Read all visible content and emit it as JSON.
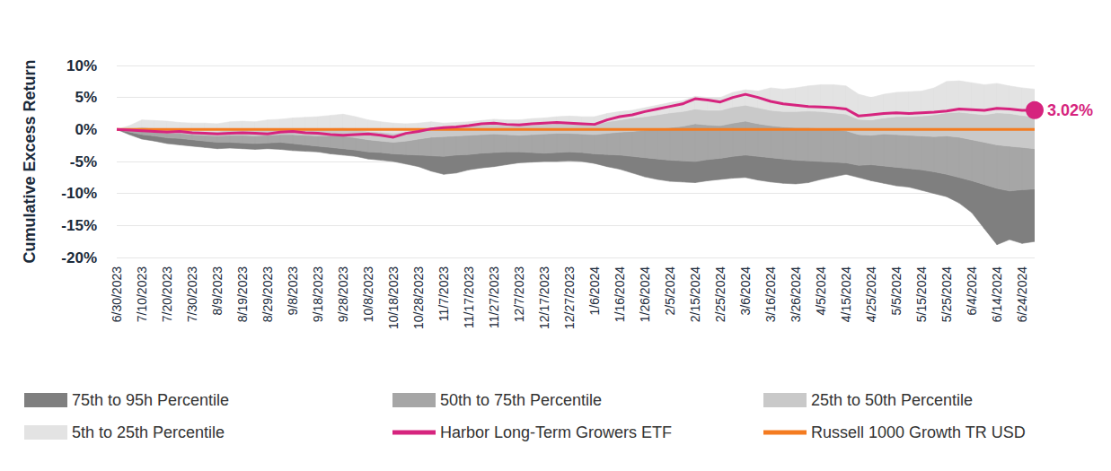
{
  "chart_data": {
    "type": "line",
    "y_label": "Cumulative Excess Return",
    "categories": [
      "6/30/2023",
      null,
      "7/10/2023",
      null,
      "7/20/2023",
      null,
      "7/30/2023",
      null,
      "8/9/2023",
      null,
      "8/19/2023",
      null,
      "8/29/2023",
      null,
      "9/8/2023",
      null,
      "9/18/2023",
      null,
      "9/28/2023",
      null,
      "10/8/2023",
      null,
      "10/18/2023",
      null,
      "10/28/2023",
      null,
      "11/7/2023",
      null,
      "11/17/2023",
      null,
      "11/27/2023",
      null,
      "12/7/2023",
      null,
      "12/17/2023",
      null,
      "12/27/2023",
      null,
      "1/6/2024",
      null,
      "1/16/2024",
      null,
      "1/26/2024",
      null,
      "2/5/2024",
      null,
      "2/15/2024",
      null,
      "2/25/2024",
      null,
      "3/6/2024",
      null,
      "3/16/2024",
      null,
      "3/26/2024",
      null,
      "4/5/2024",
      null,
      "4/15/2024",
      null,
      "4/25/2024",
      null,
      "5/5/2024",
      null,
      "5/15/2024",
      null,
      "5/25/2024",
      null,
      "6/4/2024",
      null,
      "6/14/2024",
      null,
      "6/24/2024",
      null
    ],
    "ylim": [
      -20,
      10
    ],
    "yticks": [
      {
        "value": -20,
        "label": "-20%"
      },
      {
        "value": -15,
        "label": "-15%"
      },
      {
        "value": -10,
        "label": "-10%"
      },
      {
        "value": -5,
        "label": "-5%"
      },
      {
        "value": 0,
        "label": "0%"
      },
      {
        "value": 5,
        "label": "5%"
      },
      {
        "value": 10,
        "label": "10%"
      }
    ],
    "grid": true,
    "legend": "bottom",
    "bands": [
      {
        "name": "75th to 95h Percentile",
        "color": "#7f7f7f",
        "type": "area",
        "low": [
          0,
          -0.8,
          -1.5,
          -1.8,
          -2.2,
          -2.4,
          -2.6,
          -2.8,
          -3.0,
          -2.9,
          -3.0,
          -3.1,
          -3.0,
          -3.1,
          -3.3,
          -3.4,
          -3.5,
          -3.8,
          -4.0,
          -4.2,
          -4.6,
          -4.8,
          -5.0,
          -5.4,
          -5.8,
          -6.5,
          -7.0,
          -6.8,
          -6.3,
          -6.0,
          -5.8,
          -5.5,
          -5.2,
          -5.1,
          -5.0,
          -5.0,
          -4.9,
          -5.0,
          -5.3,
          -5.8,
          -6.2,
          -6.8,
          -7.4,
          -7.8,
          -8.1,
          -8.2,
          -8.3,
          -8.0,
          -7.8,
          -7.6,
          -7.5,
          -7.9,
          -8.2,
          -8.4,
          -8.5,
          -8.3,
          -7.8,
          -7.4,
          -7.0,
          -7.5,
          -8.0,
          -8.4,
          -8.8,
          -9.0,
          -9.5,
          -10.0,
          -10.5,
          -11.5,
          -13.0,
          -15.5,
          -18.0,
          -17.2,
          -17.8,
          -17.5
        ],
        "high": [
          0,
          -0.4,
          -0.8,
          -1.0,
          -1.3,
          -1.4,
          -1.6,
          -1.8,
          -2.0,
          -2.0,
          -2.1,
          -2.2,
          -2.1,
          -2.0,
          -2.2,
          -2.4,
          -2.6,
          -2.8,
          -3.0,
          -3.2,
          -3.5,
          -3.6,
          -3.8,
          -3.9,
          -4.0,
          -4.1,
          -4.2,
          -4.0,
          -3.9,
          -3.7,
          -3.6,
          -3.5,
          -3.5,
          -3.6,
          -3.7,
          -3.6,
          -3.5,
          -3.6,
          -3.8,
          -3.9,
          -4.0,
          -4.2,
          -4.4,
          -4.6,
          -4.8,
          -4.9,
          -5.0,
          -4.7,
          -4.5,
          -4.2,
          -4.0,
          -4.2,
          -4.4,
          -4.6,
          -4.8,
          -4.9,
          -5.0,
          -5.1,
          -5.2,
          -5.6,
          -5.5,
          -5.7,
          -5.9,
          -6.1,
          -6.3,
          -6.6,
          -7.0,
          -7.5,
          -8.0,
          -8.6,
          -9.2,
          -9.6,
          -9.4,
          -9.3
        ]
      },
      {
        "name": "50th to 75th Percentile",
        "color": "#a6a6a6",
        "type": "area",
        "low": [
          0,
          -0.4,
          -0.8,
          -1.0,
          -1.3,
          -1.4,
          -1.6,
          -1.8,
          -2.0,
          -2.0,
          -2.1,
          -2.2,
          -2.1,
          -2.0,
          -2.2,
          -2.4,
          -2.6,
          -2.8,
          -3.0,
          -3.2,
          -3.5,
          -3.6,
          -3.8,
          -3.9,
          -4.0,
          -4.1,
          -4.2,
          -4.0,
          -3.9,
          -3.7,
          -3.6,
          -3.5,
          -3.5,
          -3.6,
          -3.7,
          -3.6,
          -3.5,
          -3.6,
          -3.8,
          -3.9,
          -4.0,
          -4.2,
          -4.4,
          -4.6,
          -4.8,
          -4.9,
          -5.0,
          -4.7,
          -4.5,
          -4.2,
          -4.0,
          -4.2,
          -4.4,
          -4.6,
          -4.8,
          -4.9,
          -5.0,
          -5.1,
          -5.2,
          -5.6,
          -5.5,
          -5.7,
          -5.9,
          -6.1,
          -6.3,
          -6.6,
          -7.0,
          -7.5,
          -8.0,
          -8.6,
          -9.2,
          -9.6,
          -9.4,
          -9.3
        ],
        "high": [
          0,
          -0.2,
          -0.3,
          -0.4,
          -0.6,
          -0.6,
          -0.8,
          -0.9,
          -1.0,
          -0.9,
          -0.9,
          -1.0,
          -0.9,
          -0.8,
          -0.8,
          -0.9,
          -1.0,
          -1.0,
          -1.0,
          -1.3,
          -1.6,
          -1.8,
          -2.0,
          -1.8,
          -1.5,
          -1.2,
          -1.1,
          -1.0,
          -0.9,
          -0.8,
          -0.7,
          -0.8,
          -0.9,
          -0.8,
          -0.7,
          -0.6,
          -0.6,
          -0.7,
          -0.8,
          -0.6,
          -0.4,
          -0.3,
          -0.1,
          0.1,
          0.3,
          0.5,
          0.9,
          0.7,
          0.6,
          1.0,
          1.3,
          0.9,
          0.6,
          0.4,
          0.3,
          0.3,
          0.2,
          0.0,
          -0.2,
          -0.8,
          -0.9,
          -0.7,
          -0.8,
          -0.9,
          -1.0,
          -1.1,
          -1.0,
          -1.2,
          -1.6,
          -2.0,
          -2.4,
          -2.6,
          -2.8,
          -3.0
        ]
      },
      {
        "name": "25th to 50th Percentile",
        "color": "#c9c9c9",
        "type": "area",
        "low": [
          0,
          -0.2,
          -0.3,
          -0.4,
          -0.6,
          -0.6,
          -0.8,
          -0.9,
          -1.0,
          -0.9,
          -0.9,
          -1.0,
          -0.9,
          -0.8,
          -0.8,
          -0.9,
          -1.0,
          -1.0,
          -1.0,
          -1.3,
          -1.6,
          -1.8,
          -2.0,
          -1.8,
          -1.5,
          -1.2,
          -1.1,
          -1.0,
          -0.9,
          -0.8,
          -0.7,
          -0.8,
          -0.9,
          -0.8,
          -0.7,
          -0.6,
          -0.6,
          -0.7,
          -0.8,
          -0.6,
          -0.4,
          -0.3,
          -0.1,
          0.1,
          0.3,
          0.5,
          0.9,
          0.7,
          0.6,
          1.0,
          1.3,
          0.9,
          0.6,
          0.4,
          0.3,
          0.3,
          0.2,
          0.0,
          -0.2,
          -0.8,
          -0.9,
          -0.7,
          -0.8,
          -0.9,
          -1.0,
          -1.1,
          -1.0,
          -1.2,
          -1.6,
          -2.0,
          -2.4,
          -2.6,
          -2.8,
          -3.0
        ],
        "high": [
          0,
          0.1,
          0.4,
          0.2,
          0,
          -0.1,
          -0.2,
          -0.3,
          -0.3,
          -0.1,
          0,
          -0.1,
          0,
          0.1,
          0.2,
          0.1,
          0,
          0.2,
          0.3,
          0,
          -0.3,
          -0.4,
          -0.6,
          -0.4,
          -0.2,
          0.3,
          0.4,
          0.5,
          0.6,
          0.7,
          0.8,
          0.6,
          0.6,
          0.7,
          0.8,
          0.9,
          0.9,
          0.8,
          0.8,
          1.2,
          1.5,
          1.8,
          2.0,
          2.3,
          2.6,
          2.8,
          3.2,
          3.0,
          3.0,
          3.5,
          3.8,
          3.4,
          3.0,
          2.8,
          2.8,
          2.9,
          2.8,
          2.6,
          2.4,
          1.6,
          1.5,
          1.8,
          2.0,
          2.0,
          2.1,
          2.3,
          2.6,
          2.7,
          2.5,
          2.3,
          2.6,
          2.5,
          2.2,
          2.0
        ]
      },
      {
        "name": "5th to 25th Percentile",
        "color": "#e3e3e3",
        "type": "area",
        "low": [
          0,
          0.1,
          0.4,
          0.2,
          0,
          -0.1,
          -0.2,
          -0.3,
          -0.3,
          -0.1,
          0,
          -0.1,
          0,
          0.1,
          0.2,
          0.1,
          0,
          0.2,
          0.3,
          0,
          -0.3,
          -0.4,
          -0.6,
          -0.4,
          -0.2,
          0.3,
          0.4,
          0.5,
          0.6,
          0.7,
          0.8,
          0.6,
          0.6,
          0.7,
          0.8,
          0.9,
          0.9,
          0.8,
          0.8,
          1.2,
          1.5,
          1.8,
          2.0,
          2.3,
          2.6,
          2.8,
          3.2,
          3.0,
          3.0,
          3.5,
          3.8,
          3.4,
          3.0,
          2.8,
          2.8,
          2.9,
          2.8,
          2.6,
          2.4,
          1.6,
          1.5,
          1.8,
          2.0,
          2.0,
          2.1,
          2.3,
          2.6,
          2.7,
          2.5,
          2.3,
          2.6,
          2.5,
          2.2,
          2.0
        ],
        "high": [
          0,
          0.6,
          1.5,
          1.4,
          1.3,
          1.1,
          1.0,
          1.0,
          0.9,
          1.2,
          1.3,
          1.2,
          1.5,
          1.6,
          1.8,
          1.9,
          2.0,
          2.2,
          2.4,
          2.0,
          1.5,
          1.2,
          1.0,
          0.9,
          1.0,
          1.2,
          1.0,
          1.1,
          1.2,
          1.4,
          1.6,
          1.5,
          1.5,
          1.7,
          1.8,
          2.0,
          2.1,
          2.0,
          2.0,
          2.5,
          2.8,
          3.0,
          3.4,
          3.8,
          4.2,
          4.5,
          5.2,
          5.0,
          5.0,
          5.8,
          6.2,
          6.0,
          6.5,
          6.3,
          6.5,
          6.8,
          7.0,
          7.0,
          6.8,
          5.5,
          5.0,
          5.5,
          5.8,
          5.9,
          6.0,
          6.5,
          7.5,
          7.6,
          7.3,
          7.0,
          7.2,
          6.8,
          6.5,
          6.3
        ]
      }
    ],
    "series": [
      {
        "name": "Harbor Long-Term Growers ETF",
        "color": "#d6247e",
        "type": "line",
        "values": [
          0,
          -0.1,
          -0.2,
          -0.3,
          -0.4,
          -0.3,
          -0.5,
          -0.6,
          -0.7,
          -0.6,
          -0.5,
          -0.6,
          -0.7,
          -0.4,
          -0.3,
          -0.5,
          -0.6,
          -0.8,
          -0.9,
          -0.8,
          -0.7,
          -0.9,
          -1.2,
          -0.6,
          -0.3,
          0.1,
          0.3,
          0.4,
          0.6,
          0.9,
          1.0,
          0.8,
          0.7,
          0.9,
          1.0,
          1.1,
          1.0,
          0.9,
          0.8,
          1.5,
          2.0,
          2.3,
          2.8,
          3.2,
          3.6,
          4.0,
          4.8,
          4.6,
          4.3,
          5.0,
          5.5,
          5.0,
          4.4,
          4.0,
          3.8,
          3.6,
          3.5,
          3.4,
          3.2,
          2.1,
          2.3,
          2.5,
          2.6,
          2.5,
          2.6,
          2.7,
          2.9,
          3.2,
          3.1,
          3.0,
          3.3,
          3.2,
          3.0,
          3.02
        ]
      },
      {
        "name": "Russell 1000 Growth TR USD",
        "color": "#f47b20",
        "type": "line",
        "values": [
          0,
          0,
          0,
          0,
          0,
          0,
          0,
          0,
          0,
          0,
          0,
          0,
          0,
          0,
          0,
          0,
          0,
          0,
          0,
          0,
          0,
          0,
          0,
          0,
          0,
          0,
          0,
          0,
          0,
          0,
          0,
          0,
          0,
          0,
          0,
          0,
          0,
          0,
          0,
          0,
          0,
          0,
          0,
          0,
          0,
          0,
          0,
          0,
          0,
          0,
          0,
          0,
          0,
          0,
          0,
          0,
          0,
          0,
          0,
          0,
          0,
          0,
          0,
          0,
          0,
          0,
          0,
          0,
          0,
          0,
          0,
          0,
          0,
          0
        ]
      }
    ],
    "annotations": [
      {
        "series": "Harbor Long-Term Growers ETF",
        "text": "3.02%",
        "value": 3.02
      }
    ]
  }
}
